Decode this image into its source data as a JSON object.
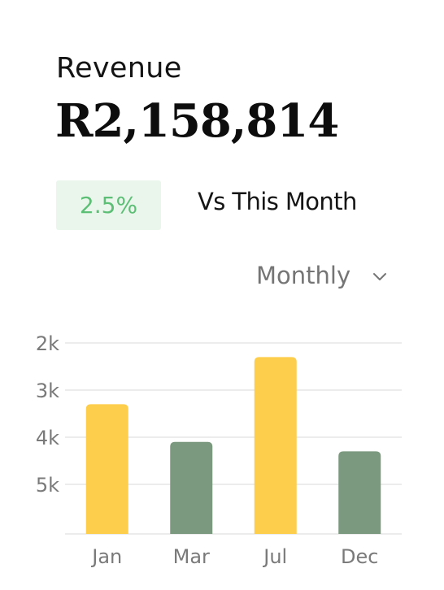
{
  "card": {
    "title": "Revenue",
    "amount": "R2,158,814",
    "change_badge": "2.5%",
    "comparison_label": "Vs This Month",
    "period_select": {
      "selected": "Monthly",
      "icon": "chevron-down-icon"
    }
  },
  "colors": {
    "bar_highlight": "#fdcd4c",
    "bar_default": "#7b997e",
    "badge_background": "#eaf6ec",
    "badge_text": "#5cbf75",
    "grid": "#e6e6e6"
  },
  "chart_data": {
    "type": "bar",
    "categories": [
      "Jan",
      "Mar",
      "Jul",
      "Dec"
    ],
    "values": [
      3.3,
      4.1,
      2.3,
      4.3
    ],
    "bar_colors": [
      "#fdcd4c",
      "#7b997e",
      "#fdcd4c",
      "#7b997e"
    ],
    "y_ticks": [
      "2k",
      "3k",
      "4k",
      "5k"
    ],
    "y_tick_values": [
      2,
      3,
      4,
      5
    ],
    "y_axis_inverted": true,
    "grid": true,
    "legend": "none"
  }
}
